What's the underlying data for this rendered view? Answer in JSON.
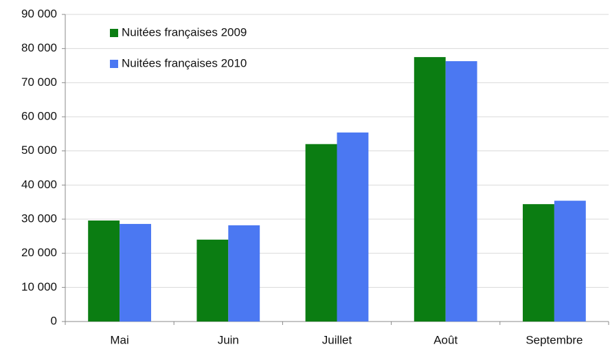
{
  "chart_data": {
    "type": "bar",
    "categories": [
      "Mai",
      "Juin",
      "Juillet",
      "Août",
      "Septembre"
    ],
    "series": [
      {
        "name": "Nuitées françaises 2009",
        "color": "#0b7d12",
        "values": [
          29600,
          24000,
          52000,
          77500,
          34400
        ]
      },
      {
        "name": "Nuitées françaises 2010",
        "color": "#4b78f2",
        "values": [
          28600,
          28200,
          55400,
          76300,
          35400
        ]
      }
    ],
    "ylim": [
      0,
      90000
    ],
    "yticks": [
      0,
      {
        "value": 10000,
        "label": "10 000"
      },
      {
        "value": 20000,
        "label": "20 000"
      },
      {
        "value": 30000,
        "label": "30 000"
      },
      {
        "value": 40000,
        "label": "40 000"
      },
      {
        "value": 50000,
        "label": "50 000"
      },
      {
        "value": 60000,
        "label": "60 000"
      },
      {
        "value": 70000,
        "label": "70 000"
      },
      {
        "value": 80000,
        "label": "80 000"
      },
      {
        "value": 90000,
        "label": "90 000"
      }
    ],
    "grid": true,
    "legend": "top-left"
  }
}
